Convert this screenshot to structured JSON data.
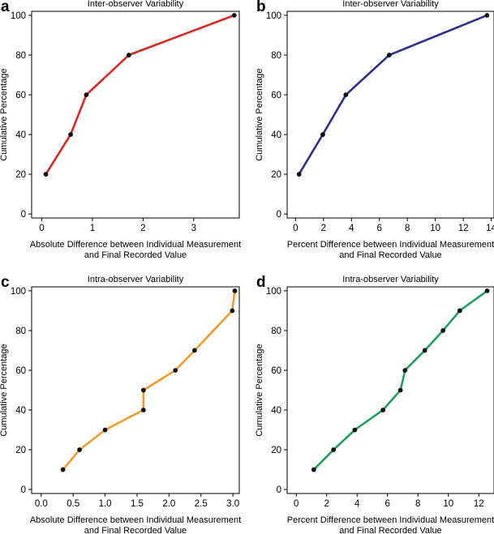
{
  "chart_data": [
    {
      "type": "line",
      "panel": "a",
      "title": "Inter-observer Variability",
      "xlabel": [
        "Absolute Difference between Individual Measurement",
        "and Final Recorded Value"
      ],
      "ylabel": "Cumulative Percentage",
      "color": "#d62a22",
      "xlim": [
        -0.2,
        3.9
      ],
      "ylim": [
        -2,
        102
      ],
      "xticks": [
        0,
        1,
        2,
        3
      ],
      "yticks": [
        0,
        20,
        40,
        60,
        80,
        100
      ],
      "x": [
        0.08,
        0.57,
        0.88,
        1.72,
        3.8
      ],
      "y": [
        20,
        40,
        60,
        80,
        100
      ]
    },
    {
      "type": "line",
      "panel": "b",
      "title": "Inter-observer Variability",
      "xlabel": [
        "Percent Difference between Individual Measurement",
        "and Final Recorded Value"
      ],
      "ylabel": "Cumulative Percentage",
      "color": "#2b2f8e",
      "xlim": [
        -0.6,
        14.2
      ],
      "ylim": [
        -2,
        102
      ],
      "xticks": [
        0,
        2,
        4,
        6,
        8,
        10,
        12,
        14
      ],
      "yticks": [
        0,
        20,
        40,
        60,
        80,
        100
      ],
      "x": [
        0.25,
        1.95,
        3.6,
        6.7,
        13.7
      ],
      "y": [
        20,
        40,
        60,
        80,
        100
      ]
    },
    {
      "type": "line",
      "panel": "c",
      "title": "Intra-observer Variability",
      "xlabel": [
        "Absolute Difference between Individual Measurement",
        "and Final Recorded Value"
      ],
      "ylabel": "Cumulative Percentage",
      "color": "#f59a2a",
      "xlim": [
        -0.15,
        3.1
      ],
      "ylim": [
        -2,
        102
      ],
      "xticks": [
        "0.0",
        "0.5",
        "1.0",
        "1.5",
        "2.0",
        "2.5",
        "3.0"
      ],
      "yticks": [
        0,
        20,
        40,
        60,
        80,
        100
      ],
      "x": [
        0.34,
        0.6,
        1.0,
        1.6,
        1.6,
        2.1,
        2.4,
        2.99,
        3.03
      ],
      "y": [
        10,
        20,
        30,
        40,
        50,
        60,
        70,
        90,
        100
      ]
    },
    {
      "type": "line",
      "panel": "d",
      "title": "Intra-observer Variability",
      "xlabel": [
        "Percent Difference between Individual Measurement",
        "and Final Recorded Value"
      ],
      "ylabel": "Cumulative Percentage",
      "color": "#1fa05a",
      "xlim": [
        -0.6,
        13.0
      ],
      "ylim": [
        -2,
        102
      ],
      "xticks": [
        0,
        2,
        4,
        6,
        8,
        10,
        12
      ],
      "yticks": [
        0,
        20,
        40,
        60,
        80,
        100
      ],
      "x": [
        1.15,
        2.45,
        3.85,
        5.7,
        6.85,
        7.15,
        8.45,
        9.65,
        10.75,
        12.55
      ],
      "y": [
        10,
        20,
        30,
        40,
        50,
        60,
        70,
        80,
        90,
        100
      ]
    }
  ]
}
